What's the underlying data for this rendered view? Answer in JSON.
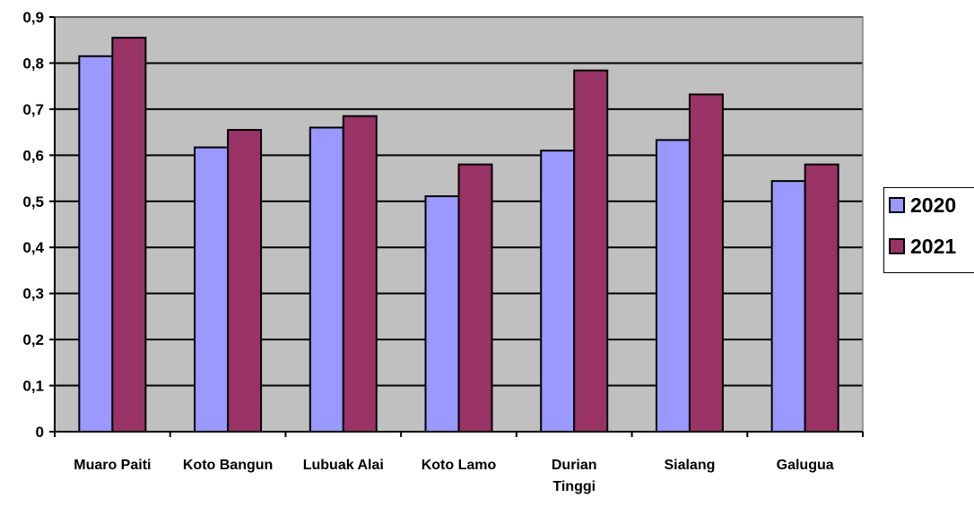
{
  "chart_data": {
    "type": "bar",
    "title": "",
    "xlabel": "",
    "ylabel": "",
    "categories": [
      "Muaro Paiti",
      "Koto Bangun",
      "Lubuak Alai",
      "Koto Lamo",
      "Durian Tinggi",
      "Sialang",
      "Galugua"
    ],
    "category_lines": [
      [
        "Muaro Paiti"
      ],
      [
        "Koto Bangun"
      ],
      [
        "Lubuak Alai"
      ],
      [
        "Koto Lamo"
      ],
      [
        "Durian",
        "Tinggi"
      ],
      [
        "Sialang"
      ],
      [
        "Galugua"
      ]
    ],
    "series": [
      {
        "name": "2020",
        "values": [
          0.815,
          0.617,
          0.66,
          0.511,
          0.61,
          0.633,
          0.544
        ]
      },
      {
        "name": "2021",
        "values": [
          0.855,
          0.655,
          0.685,
          0.58,
          0.784,
          0.732,
          0.58
        ]
      }
    ],
    "ylim": [
      0,
      0.9
    ],
    "yticks": [
      0,
      0.1,
      0.2,
      0.3,
      0.4,
      0.5,
      0.6,
      0.7,
      0.8,
      0.9
    ],
    "ytick_labels": [
      "0",
      "0,1",
      "0,2",
      "0,3",
      "0,4",
      "0,5",
      "0,6",
      "0,7",
      "0,8",
      "0,9"
    ],
    "grid": true,
    "legend_position": "right",
    "colors": {
      "plot_background": "#c0c0c0",
      "series_2020": "#9999ff",
      "series_2021": "#993366",
      "gridline": "#000000"
    }
  }
}
